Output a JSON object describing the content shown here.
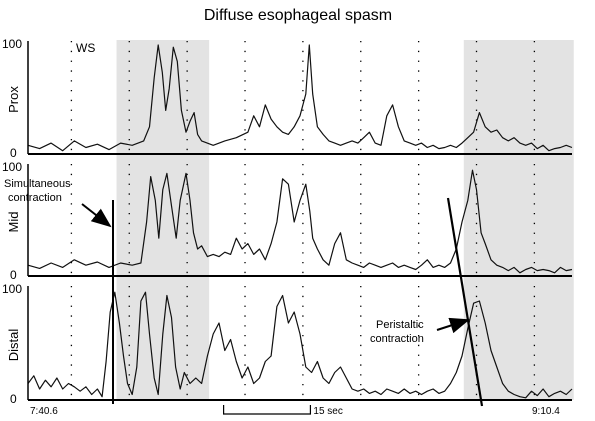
{
  "chart_data": {
    "type": "line",
    "title": "Diffuse esophageal spasm",
    "channels": [
      {
        "name": "Prox",
        "ylim": [
          0,
          100
        ],
        "y_ticks": [
          "100",
          "0"
        ],
        "points": [
          [
            0,
            8
          ],
          [
            2,
            5
          ],
          [
            4,
            10
          ],
          [
            6,
            3
          ],
          [
            8,
            12
          ],
          [
            10,
            6
          ],
          [
            12,
            9
          ],
          [
            14,
            4
          ],
          [
            16,
            10
          ],
          [
            18,
            8
          ],
          [
            20,
            12
          ],
          [
            21,
            25
          ],
          [
            21.8,
            70
          ],
          [
            22.5,
            100
          ],
          [
            23.2,
            75
          ],
          [
            23.8,
            40
          ],
          [
            24.4,
            60
          ],
          [
            25.1,
            98
          ],
          [
            25.8,
            85
          ],
          [
            26.5,
            40
          ],
          [
            27.3,
            20
          ],
          [
            28,
            30
          ],
          [
            28.7,
            38
          ],
          [
            29.3,
            18
          ],
          [
            30,
            12
          ],
          [
            32,
            8
          ],
          [
            34,
            12
          ],
          [
            36,
            15
          ],
          [
            38,
            20
          ],
          [
            39,
            35
          ],
          [
            40,
            25
          ],
          [
            41,
            45
          ],
          [
            42,
            32
          ],
          [
            43,
            25
          ],
          [
            44,
            20
          ],
          [
            45,
            18
          ],
          [
            46,
            25
          ],
          [
            47,
            35
          ],
          [
            48,
            55
          ],
          [
            48.6,
            100
          ],
          [
            49.2,
            55
          ],
          [
            50,
            25
          ],
          [
            51,
            18
          ],
          [
            52,
            12
          ],
          [
            53,
            10
          ],
          [
            54,
            8
          ],
          [
            55,
            10
          ],
          [
            56,
            12
          ],
          [
            57,
            10
          ],
          [
            58,
            15
          ],
          [
            59,
            20
          ],
          [
            60,
            10
          ],
          [
            61,
            8
          ],
          [
            62,
            35
          ],
          [
            63,
            45
          ],
          [
            64,
            25
          ],
          [
            65,
            12
          ],
          [
            66,
            10
          ],
          [
            67,
            8
          ],
          [
            68,
            10
          ],
          [
            69,
            6
          ],
          [
            70,
            8
          ],
          [
            71,
            5
          ],
          [
            72,
            6
          ],
          [
            73,
            8
          ],
          [
            74,
            6
          ],
          [
            75,
            10
          ],
          [
            76,
            15
          ],
          [
            77,
            20
          ],
          [
            78,
            38
          ],
          [
            79,
            25
          ],
          [
            80,
            20
          ],
          [
            81,
            22
          ],
          [
            82,
            15
          ],
          [
            83,
            12
          ],
          [
            84,
            15
          ],
          [
            85,
            10
          ],
          [
            86,
            8
          ],
          [
            87,
            10
          ],
          [
            88,
            5
          ],
          [
            89,
            8
          ],
          [
            90,
            3
          ],
          [
            91,
            5
          ],
          [
            92,
            6
          ],
          [
            93,
            8
          ],
          [
            94,
            6
          ]
        ]
      },
      {
        "name": "Mid",
        "ylim": [
          0,
          100
        ],
        "y_ticks": [
          "100",
          "0"
        ],
        "points": [
          [
            0,
            10
          ],
          [
            2,
            7
          ],
          [
            4,
            12
          ],
          [
            6,
            8
          ],
          [
            8,
            15
          ],
          [
            10,
            10
          ],
          [
            12,
            13
          ],
          [
            14,
            8
          ],
          [
            16,
            12
          ],
          [
            18,
            10
          ],
          [
            19.5,
            12
          ],
          [
            20.5,
            50
          ],
          [
            21.2,
            92
          ],
          [
            22,
            70
          ],
          [
            22.6,
            35
          ],
          [
            23.3,
            80
          ],
          [
            24,
            95
          ],
          [
            24.8,
            65
          ],
          [
            25.6,
            35
          ],
          [
            26.3,
            70
          ],
          [
            27.3,
            95
          ],
          [
            28,
            70
          ],
          [
            28.6,
            40
          ],
          [
            29.3,
            25
          ],
          [
            30,
            28
          ],
          [
            31,
            18
          ],
          [
            32,
            20
          ],
          [
            33,
            18
          ],
          [
            34,
            22
          ],
          [
            35,
            20
          ],
          [
            36,
            35
          ],
          [
            37,
            25
          ],
          [
            38,
            30
          ],
          [
            39,
            20
          ],
          [
            40,
            25
          ],
          [
            41,
            15
          ],
          [
            42,
            30
          ],
          [
            43,
            50
          ],
          [
            44,
            90
          ],
          [
            45,
            85
          ],
          [
            46,
            50
          ],
          [
            47,
            70
          ],
          [
            48,
            85
          ],
          [
            48.7,
            60
          ],
          [
            49.2,
            35
          ],
          [
            50,
            25
          ],
          [
            51,
            15
          ],
          [
            52,
            10
          ],
          [
            53,
            30
          ],
          [
            54,
            40
          ],
          [
            55,
            15
          ],
          [
            56,
            12
          ],
          [
            57,
            10
          ],
          [
            58,
            8
          ],
          [
            59,
            12
          ],
          [
            60,
            10
          ],
          [
            61,
            8
          ],
          [
            62,
            10
          ],
          [
            63,
            12
          ],
          [
            64,
            8
          ],
          [
            65,
            10
          ],
          [
            66,
            8
          ],
          [
            67,
            6
          ],
          [
            68,
            10
          ],
          [
            69,
            15
          ],
          [
            70,
            8
          ],
          [
            71,
            10
          ],
          [
            72,
            8
          ],
          [
            73,
            12
          ],
          [
            74,
            25
          ],
          [
            75,
            50
          ],
          [
            76,
            70
          ],
          [
            76.8,
            98
          ],
          [
            77.5,
            80
          ],
          [
            78.3,
            40
          ],
          [
            79,
            30
          ],
          [
            80,
            15
          ],
          [
            81,
            10
          ],
          [
            82,
            8
          ],
          [
            83,
            5
          ],
          [
            84,
            8
          ],
          [
            85,
            3
          ],
          [
            86,
            6
          ],
          [
            87,
            8
          ],
          [
            88,
            5
          ],
          [
            89,
            6
          ],
          [
            90,
            5
          ],
          [
            91,
            3
          ],
          [
            92,
            8
          ],
          [
            93,
            5
          ],
          [
            94,
            6
          ]
        ]
      },
      {
        "name": "Distal",
        "ylim": [
          0,
          100
        ],
        "y_ticks": [
          "100",
          "0"
        ],
        "points": [
          [
            0,
            15
          ],
          [
            1,
            22
          ],
          [
            2,
            10
          ],
          [
            3,
            18
          ],
          [
            4,
            12
          ],
          [
            5,
            20
          ],
          [
            6,
            10
          ],
          [
            7,
            15
          ],
          [
            8,
            12
          ],
          [
            9,
            8
          ],
          [
            10,
            12
          ],
          [
            11,
            5
          ],
          [
            12,
            10
          ],
          [
            12.8,
            3
          ],
          [
            13.5,
            35
          ],
          [
            14.2,
            80
          ],
          [
            15,
            98
          ],
          [
            15.8,
            70
          ],
          [
            16.5,
            40
          ],
          [
            17.2,
            15
          ],
          [
            18,
            5
          ],
          [
            18.8,
            30
          ],
          [
            19.5,
            90
          ],
          [
            20.3,
            98
          ],
          [
            21,
            60
          ],
          [
            21.8,
            20
          ],
          [
            22.5,
            5
          ],
          [
            23.3,
            60
          ],
          [
            24,
            95
          ],
          [
            24.8,
            75
          ],
          [
            25.5,
            30
          ],
          [
            26.3,
            10
          ],
          [
            27,
            25
          ],
          [
            28,
            15
          ],
          [
            29,
            20
          ],
          [
            30,
            15
          ],
          [
            31,
            40
          ],
          [
            32,
            60
          ],
          [
            33,
            70
          ],
          [
            34,
            45
          ],
          [
            35,
            55
          ],
          [
            36,
            35
          ],
          [
            37,
            20
          ],
          [
            38,
            30
          ],
          [
            39,
            15
          ],
          [
            40,
            20
          ],
          [
            41,
            35
          ],
          [
            42,
            40
          ],
          [
            43,
            85
          ],
          [
            44,
            95
          ],
          [
            45,
            70
          ],
          [
            46,
            80
          ],
          [
            47,
            60
          ],
          [
            48,
            30
          ],
          [
            49,
            25
          ],
          [
            50,
            35
          ],
          [
            51,
            20
          ],
          [
            52,
            15
          ],
          [
            53,
            25
          ],
          [
            54,
            30
          ],
          [
            55,
            20
          ],
          [
            56,
            10
          ],
          [
            57,
            8
          ],
          [
            58,
            10
          ],
          [
            59,
            6
          ],
          [
            60,
            8
          ],
          [
            61,
            5
          ],
          [
            62,
            10
          ],
          [
            63,
            8
          ],
          [
            64,
            6
          ],
          [
            65,
            10
          ],
          [
            66,
            6
          ],
          [
            67,
            8
          ],
          [
            68,
            5
          ],
          [
            69,
            8
          ],
          [
            70,
            10
          ],
          [
            71,
            6
          ],
          [
            72,
            8
          ],
          [
            73,
            15
          ],
          [
            74,
            25
          ],
          [
            75,
            40
          ],
          [
            76,
            65
          ],
          [
            77,
            88
          ],
          [
            78,
            90
          ],
          [
            79,
            70
          ],
          [
            80,
            45
          ],
          [
            81,
            30
          ],
          [
            82,
            15
          ],
          [
            83,
            8
          ],
          [
            84,
            5
          ],
          [
            85,
            3
          ],
          [
            86,
            2
          ],
          [
            87,
            8
          ],
          [
            88,
            4
          ],
          [
            89,
            10
          ],
          [
            90,
            3
          ],
          [
            91,
            6
          ],
          [
            92,
            8
          ],
          [
            93,
            5
          ],
          [
            94,
            10
          ]
        ]
      }
    ],
    "x_range": [
      0,
      94
    ],
    "x_gridlines": [
      7.5,
      17.5,
      27.5,
      37.5,
      47.5,
      57.5,
      67.5,
      77.5,
      87.5
    ],
    "swallow_regions": [
      [
        15.3,
        31.3
      ],
      [
        75.3,
        94.3
      ]
    ],
    "x_tick_labels": {
      "start": "7:40.6",
      "end": "9:10.4"
    },
    "scale_bar": {
      "label": "15 sec",
      "x_start": 33.8,
      "x_end": 48.8
    },
    "annotations": {
      "ws": "WS",
      "simultaneous": "Simultaneous contraction",
      "peristaltic": "Peristaltic contraction"
    },
    "grid": "dotted vertical",
    "shading_color": "#e3e3e3",
    "line_color": "#111111"
  }
}
